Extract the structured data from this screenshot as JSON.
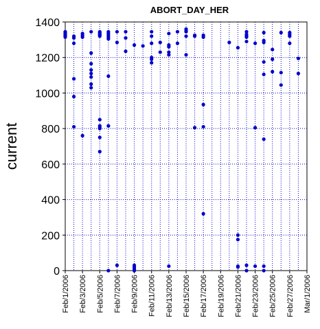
{
  "chart_data": {
    "type": "scatter",
    "title": "ABORT_DAY_HER",
    "xlabel": "",
    "ylabel": "current",
    "ylim": [
      0,
      1400
    ],
    "yticks": [
      0,
      200,
      400,
      600,
      800,
      1000,
      1200,
      1400
    ],
    "xlim": [
      "2006-02-01",
      "2006-03-01"
    ],
    "xtick_labels": [
      "Feb/1/2006",
      "Feb/3/2006",
      "Feb/5/2006",
      "Feb/7/2006",
      "Feb/9/2006",
      "Feb/11/2006",
      "Feb/13/2006",
      "Feb/15/2006",
      "Feb/17/2006",
      "Feb/19/2006",
      "Feb/21/2006",
      "Feb/23/2006",
      "Feb/25/2006",
      "Feb/27/2006",
      "Mar/1/2006"
    ],
    "grid": true,
    "marker_color": "#0000cc",
    "grid_color": "#0000cc",
    "series": [
      {
        "points": [
          [
            "2006-02-01",
            1345
          ],
          [
            "2006-02-01",
            1340
          ],
          [
            "2006-02-01",
            1335
          ],
          [
            "2006-02-01",
            1330
          ],
          [
            "2006-02-01",
            1325
          ],
          [
            "2006-02-01",
            1320
          ],
          [
            "2006-02-01",
            1315
          ],
          [
            "2006-02-02",
            1320
          ],
          [
            "2006-02-02",
            1310
          ],
          [
            "2006-02-02",
            1280
          ],
          [
            "2006-02-02",
            1080
          ],
          [
            "2006-02-02",
            980
          ],
          [
            "2006-02-02",
            810
          ],
          [
            "2006-02-03",
            1335
          ],
          [
            "2006-02-03",
            1325
          ],
          [
            "2006-02-03",
            1315
          ],
          [
            "2006-02-03",
            760
          ],
          [
            "2006-02-04",
            1345
          ],
          [
            "2006-02-04",
            1225
          ],
          [
            "2006-02-04",
            1165
          ],
          [
            "2006-02-04",
            1130
          ],
          [
            "2006-02-04",
            1110
          ],
          [
            "2006-02-04",
            1090
          ],
          [
            "2006-02-04",
            1050
          ],
          [
            "2006-02-04",
            1030
          ],
          [
            "2006-02-05",
            1345
          ],
          [
            "2006-02-05",
            1340
          ],
          [
            "2006-02-05",
            1335
          ],
          [
            "2006-02-05",
            1330
          ],
          [
            "2006-02-05",
            1325
          ],
          [
            "2006-02-05",
            1320
          ],
          [
            "2006-02-05",
            850
          ],
          [
            "2006-02-05",
            815
          ],
          [
            "2006-02-05",
            805
          ],
          [
            "2006-02-05",
            800
          ],
          [
            "2006-02-05",
            750
          ],
          [
            "2006-02-05",
            670
          ],
          [
            "2006-02-06",
            1345
          ],
          [
            "2006-02-06",
            1335
          ],
          [
            "2006-02-06",
            1325
          ],
          [
            "2006-02-06",
            1315
          ],
          [
            "2006-02-06",
            1305
          ],
          [
            "2006-02-06",
            1095
          ],
          [
            "2006-02-06",
            815
          ],
          [
            "2006-02-06",
            0
          ],
          [
            "2006-02-07",
            1345
          ],
          [
            "2006-02-07",
            1285
          ],
          [
            "2006-02-07",
            30
          ],
          [
            "2006-02-08",
            1345
          ],
          [
            "2006-02-08",
            1310
          ],
          [
            "2006-02-08",
            1235
          ],
          [
            "2006-02-09",
            1270
          ],
          [
            "2006-02-09",
            30
          ],
          [
            "2006-02-09",
            20
          ],
          [
            "2006-02-09",
            10
          ],
          [
            "2006-02-09",
            0
          ],
          [
            "2006-02-10",
            1265
          ],
          [
            "2006-02-11",
            1345
          ],
          [
            "2006-02-11",
            1320
          ],
          [
            "2006-02-11",
            1280
          ],
          [
            "2006-02-11",
            1200
          ],
          [
            "2006-02-11",
            1190
          ],
          [
            "2006-02-11",
            1170
          ],
          [
            "2006-02-12",
            1285
          ],
          [
            "2006-02-12",
            1230
          ],
          [
            "2006-02-13",
            1335
          ],
          [
            "2006-02-13",
            1270
          ],
          [
            "2006-02-13",
            1260
          ],
          [
            "2006-02-13",
            1230
          ],
          [
            "2006-02-13",
            1215
          ],
          [
            "2006-02-13",
            25
          ],
          [
            "2006-02-14",
            1345
          ],
          [
            "2006-02-14",
            1280
          ],
          [
            "2006-02-15",
            1360
          ],
          [
            "2006-02-15",
            1350
          ],
          [
            "2006-02-15",
            1345
          ],
          [
            "2006-02-15",
            1320
          ],
          [
            "2006-02-15",
            1215
          ],
          [
            "2006-02-16",
            1325
          ],
          [
            "2006-02-16",
            1320
          ],
          [
            "2006-02-16",
            805
          ],
          [
            "2006-02-17",
            1325
          ],
          [
            "2006-02-17",
            1315
          ],
          [
            "2006-02-17",
            935
          ],
          [
            "2006-02-17",
            810
          ],
          [
            "2006-02-17",
            320
          ],
          [
            "2006-02-20",
            1285
          ],
          [
            "2006-02-21",
            1255
          ],
          [
            "2006-02-21",
            200
          ],
          [
            "2006-02-21",
            175
          ],
          [
            "2006-02-21",
            25
          ],
          [
            "2006-02-21",
            20
          ],
          [
            "2006-02-22",
            1345
          ],
          [
            "2006-02-22",
            1330
          ],
          [
            "2006-02-22",
            1320
          ],
          [
            "2006-02-22",
            1315
          ],
          [
            "2006-02-22",
            1290
          ],
          [
            "2006-02-22",
            30
          ],
          [
            "2006-02-22",
            0
          ],
          [
            "2006-02-23",
            1280
          ],
          [
            "2006-02-23",
            805
          ],
          [
            "2006-02-23",
            25
          ],
          [
            "2006-02-24",
            1340
          ],
          [
            "2006-02-24",
            1295
          ],
          [
            "2006-02-24",
            1285
          ],
          [
            "2006-02-24",
            1175
          ],
          [
            "2006-02-24",
            1105
          ],
          [
            "2006-02-24",
            740
          ],
          [
            "2006-02-24",
            25
          ],
          [
            "2006-02-24",
            0
          ],
          [
            "2006-02-25",
            1245
          ],
          [
            "2006-02-25",
            1190
          ],
          [
            "2006-02-25",
            1120
          ],
          [
            "2006-02-26",
            1340
          ],
          [
            "2006-02-26",
            1115
          ],
          [
            "2006-02-26",
            1045
          ],
          [
            "2006-02-27",
            1340
          ],
          [
            "2006-02-27",
            1330
          ],
          [
            "2006-02-27",
            1320
          ],
          [
            "2006-02-27",
            1280
          ],
          [
            "2006-02-28",
            1195
          ],
          [
            "2006-02-28",
            1110
          ]
        ]
      }
    ]
  }
}
